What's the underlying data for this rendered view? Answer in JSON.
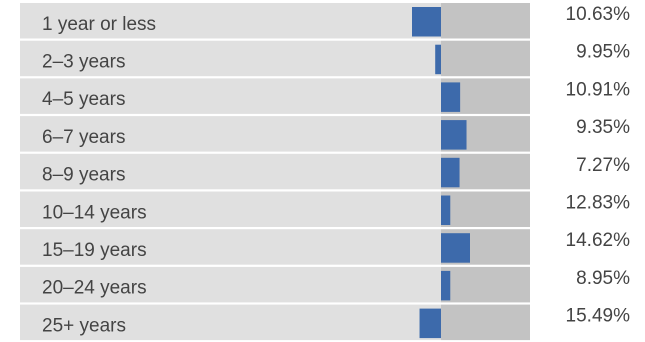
{
  "chart_data": {
    "type": "bar",
    "categories": [
      "1 year or less",
      "2–3 years",
      "4–5 years",
      "6–7 years",
      "8–9 years",
      "10–14 years",
      "15–19 years",
      "20–24 years",
      "25+ years"
    ],
    "values": [
      "10.63%",
      "9.95%",
      "10.91%",
      "9.35%",
      "7.27%",
      "12.83%",
      "14.62%",
      "8.95%",
      "15.49%"
    ],
    "deviation": [
      -1.0,
      -0.2,
      0.66,
      0.88,
      0.64,
      0.32,
      1.0,
      0.32,
      -0.74
    ],
    "deviation_range": [
      -1,
      1
    ],
    "grid": false,
    "legend": "none",
    "colors": {
      "row_background": "#e0e0e0",
      "right_track": "#c3c3c3",
      "bar": "#3d6aab",
      "separator": "#ffffff",
      "text": "#444444"
    }
  }
}
